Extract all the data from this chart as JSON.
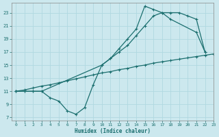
{
  "xlabel": "Humidex (Indice chaleur)",
  "bg_color": "#cce8ee",
  "line_color": "#1a6e6e",
  "grid_color": "#b0d8e0",
  "xlim": [
    -0.5,
    23
  ],
  "ylim": [
    6.5,
    24.5
  ],
  "xticks": [
    0,
    1,
    2,
    3,
    4,
    5,
    6,
    7,
    8,
    9,
    10,
    11,
    12,
    13,
    14,
    15,
    16,
    17,
    18,
    19,
    20,
    21,
    22,
    23
  ],
  "yticks": [
    7,
    9,
    11,
    13,
    15,
    17,
    19,
    21,
    23
  ],
  "series1_x": [
    0,
    1,
    2,
    3,
    4,
    5,
    6,
    7,
    8,
    9,
    10,
    11,
    12,
    13,
    14,
    15,
    16,
    17,
    18,
    21,
    22
  ],
  "series1_y": [
    11,
    11,
    11,
    11,
    10,
    9.5,
    8,
    7.5,
    8.5,
    12,
    15,
    16,
    17.5,
    19,
    20.5,
    24,
    23.5,
    23,
    22,
    20,
    17
  ],
  "series2_x": [
    0,
    1,
    2,
    3,
    10,
    11,
    12,
    13,
    14,
    15,
    16,
    17,
    18,
    19,
    20,
    21,
    22
  ],
  "series2_y": [
    11,
    11,
    11,
    11,
    15,
    16,
    17,
    18,
    19.5,
    21,
    22.5,
    23,
    23,
    23,
    22.5,
    22,
    17
  ],
  "series3_x": [
    0,
    1,
    2,
    3,
    4,
    5,
    6,
    7,
    8,
    9,
    10,
    11,
    12,
    13,
    14,
    15,
    16,
    17,
    18,
    19,
    20,
    21,
    22,
    23
  ],
  "series3_y": [
    11,
    11.2,
    11.5,
    11.8,
    12,
    12.3,
    12.6,
    12.9,
    13.2,
    13.5,
    13.8,
    14,
    14.3,
    14.5,
    14.8,
    15,
    15.3,
    15.5,
    15.7,
    15.9,
    16.1,
    16.3,
    16.5,
    16.7
  ]
}
